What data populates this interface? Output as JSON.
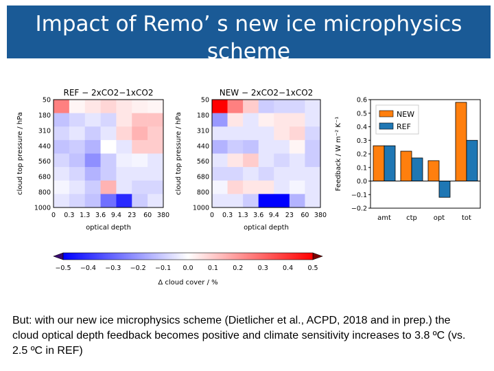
{
  "slide": {
    "title_line1": "Impact of Remo’ s new ice microphysics",
    "title_line2": "scheme",
    "caption": "But: with our new ice microphysics scheme (Dietlicher et al.,  ACPD, 2018 and in prep.) the cloud optical depth feedback becomes positive and climate sensitivity increases to 3.8 ºC (vs. 2.5 ºC in REF)"
  },
  "colors": {
    "title_bg": "#1a5a96",
    "new": "#ff7f0e",
    "ref": "#1f77b4"
  },
  "chart_data": [
    {
      "type": "heatmap",
      "title": "REF − 2xCO2−1xCO2",
      "xlabel": "optical depth",
      "ylabel": "cloud top pressure / hPa",
      "x_ticks": [
        "0",
        "0.3",
        "1.3",
        "3.6",
        "9.4",
        "23",
        "60",
        "380"
      ],
      "y_ticks": [
        "50",
        "180",
        "310",
        "440",
        "560",
        "680",
        "800",
        "1000"
      ],
      "values": [
        [
          0.25,
          0.02,
          0.05,
          0.08,
          0.05,
          0.03,
          0.02
        ],
        [
          -0.12,
          -0.08,
          -0.05,
          -0.08,
          0.05,
          0.12,
          0.12
        ],
        [
          -0.08,
          -0.05,
          -0.1,
          -0.05,
          0.08,
          0.15,
          0.1
        ],
        [
          -0.12,
          -0.1,
          -0.15,
          0.0,
          -0.05,
          0.1,
          0.1
        ],
        [
          -0.08,
          -0.12,
          -0.22,
          -0.1,
          -0.03,
          -0.02,
          -0.05
        ],
        [
          -0.05,
          -0.08,
          -0.15,
          -0.1,
          -0.05,
          -0.05,
          -0.05
        ],
        [
          -0.02,
          -0.05,
          -0.1,
          0.15,
          -0.05,
          -0.08,
          -0.08
        ],
        [
          -0.05,
          -0.08,
          -0.12,
          -0.28,
          -0.42,
          -0.1,
          -0.05
        ]
      ]
    },
    {
      "type": "heatmap",
      "title": "NEW − 2xCO2−1xCO2",
      "xlabel": "optical depth",
      "ylabel": "cloud top pressure / hPa",
      "x_ticks": [
        "0",
        "0.3",
        "1.3",
        "3.6",
        "9.4",
        "23",
        "60",
        "380"
      ],
      "y_ticks": [
        "50",
        "180",
        "310",
        "440",
        "560",
        "680",
        "800",
        "1000"
      ],
      "values": [
        [
          0.5,
          0.25,
          0.1,
          -0.1,
          -0.08,
          -0.08,
          -0.05
        ],
        [
          -0.2,
          0.05,
          -0.05,
          0.03,
          0.05,
          0.05,
          -0.05
        ],
        [
          -0.05,
          -0.05,
          -0.05,
          -0.05,
          0.05,
          0.08,
          -0.08
        ],
        [
          -0.15,
          -0.1,
          -0.12,
          -0.05,
          -0.05,
          0.02,
          -0.1
        ],
        [
          -0.05,
          0.05,
          0.1,
          -0.05,
          -0.08,
          -0.05,
          -0.1
        ],
        [
          -0.08,
          -0.08,
          -0.05,
          -0.08,
          -0.05,
          -0.05,
          -0.05
        ],
        [
          -0.02,
          0.08,
          0.05,
          0.05,
          -0.05,
          -0.02,
          -0.05
        ],
        [
          -0.05,
          -0.05,
          -0.1,
          -0.65,
          -0.7,
          -0.15,
          -0.05
        ]
      ]
    },
    {
      "type": "bar",
      "ylabel": "Feedback / W m⁻² K⁻¹",
      "categories": [
        "amt",
        "ctp",
        "opt",
        "tot"
      ],
      "series": [
        {
          "name": "NEW",
          "values": [
            0.26,
            0.22,
            0.15,
            0.58
          ]
        },
        {
          "name": "REF",
          "values": [
            0.26,
            0.17,
            -0.12,
            0.3
          ]
        }
      ],
      "ylim": [
        -0.2,
        0.6
      ],
      "y_ticks": [
        "−0.2",
        "−0.1",
        "0.0",
        "0.1",
        "0.2",
        "0.3",
        "0.4",
        "0.5",
        "0.6"
      ]
    },
    {
      "type": "colorbar",
      "label": "Δ cloud cover / %",
      "range": [
        -0.5,
        0.5
      ],
      "ticks": [
        "−0.5",
        "−0.4",
        "−0.3",
        "−0.2",
        "−0.1",
        "0.0",
        "0.1",
        "0.2",
        "0.3",
        "0.4",
        "0.5"
      ]
    }
  ]
}
